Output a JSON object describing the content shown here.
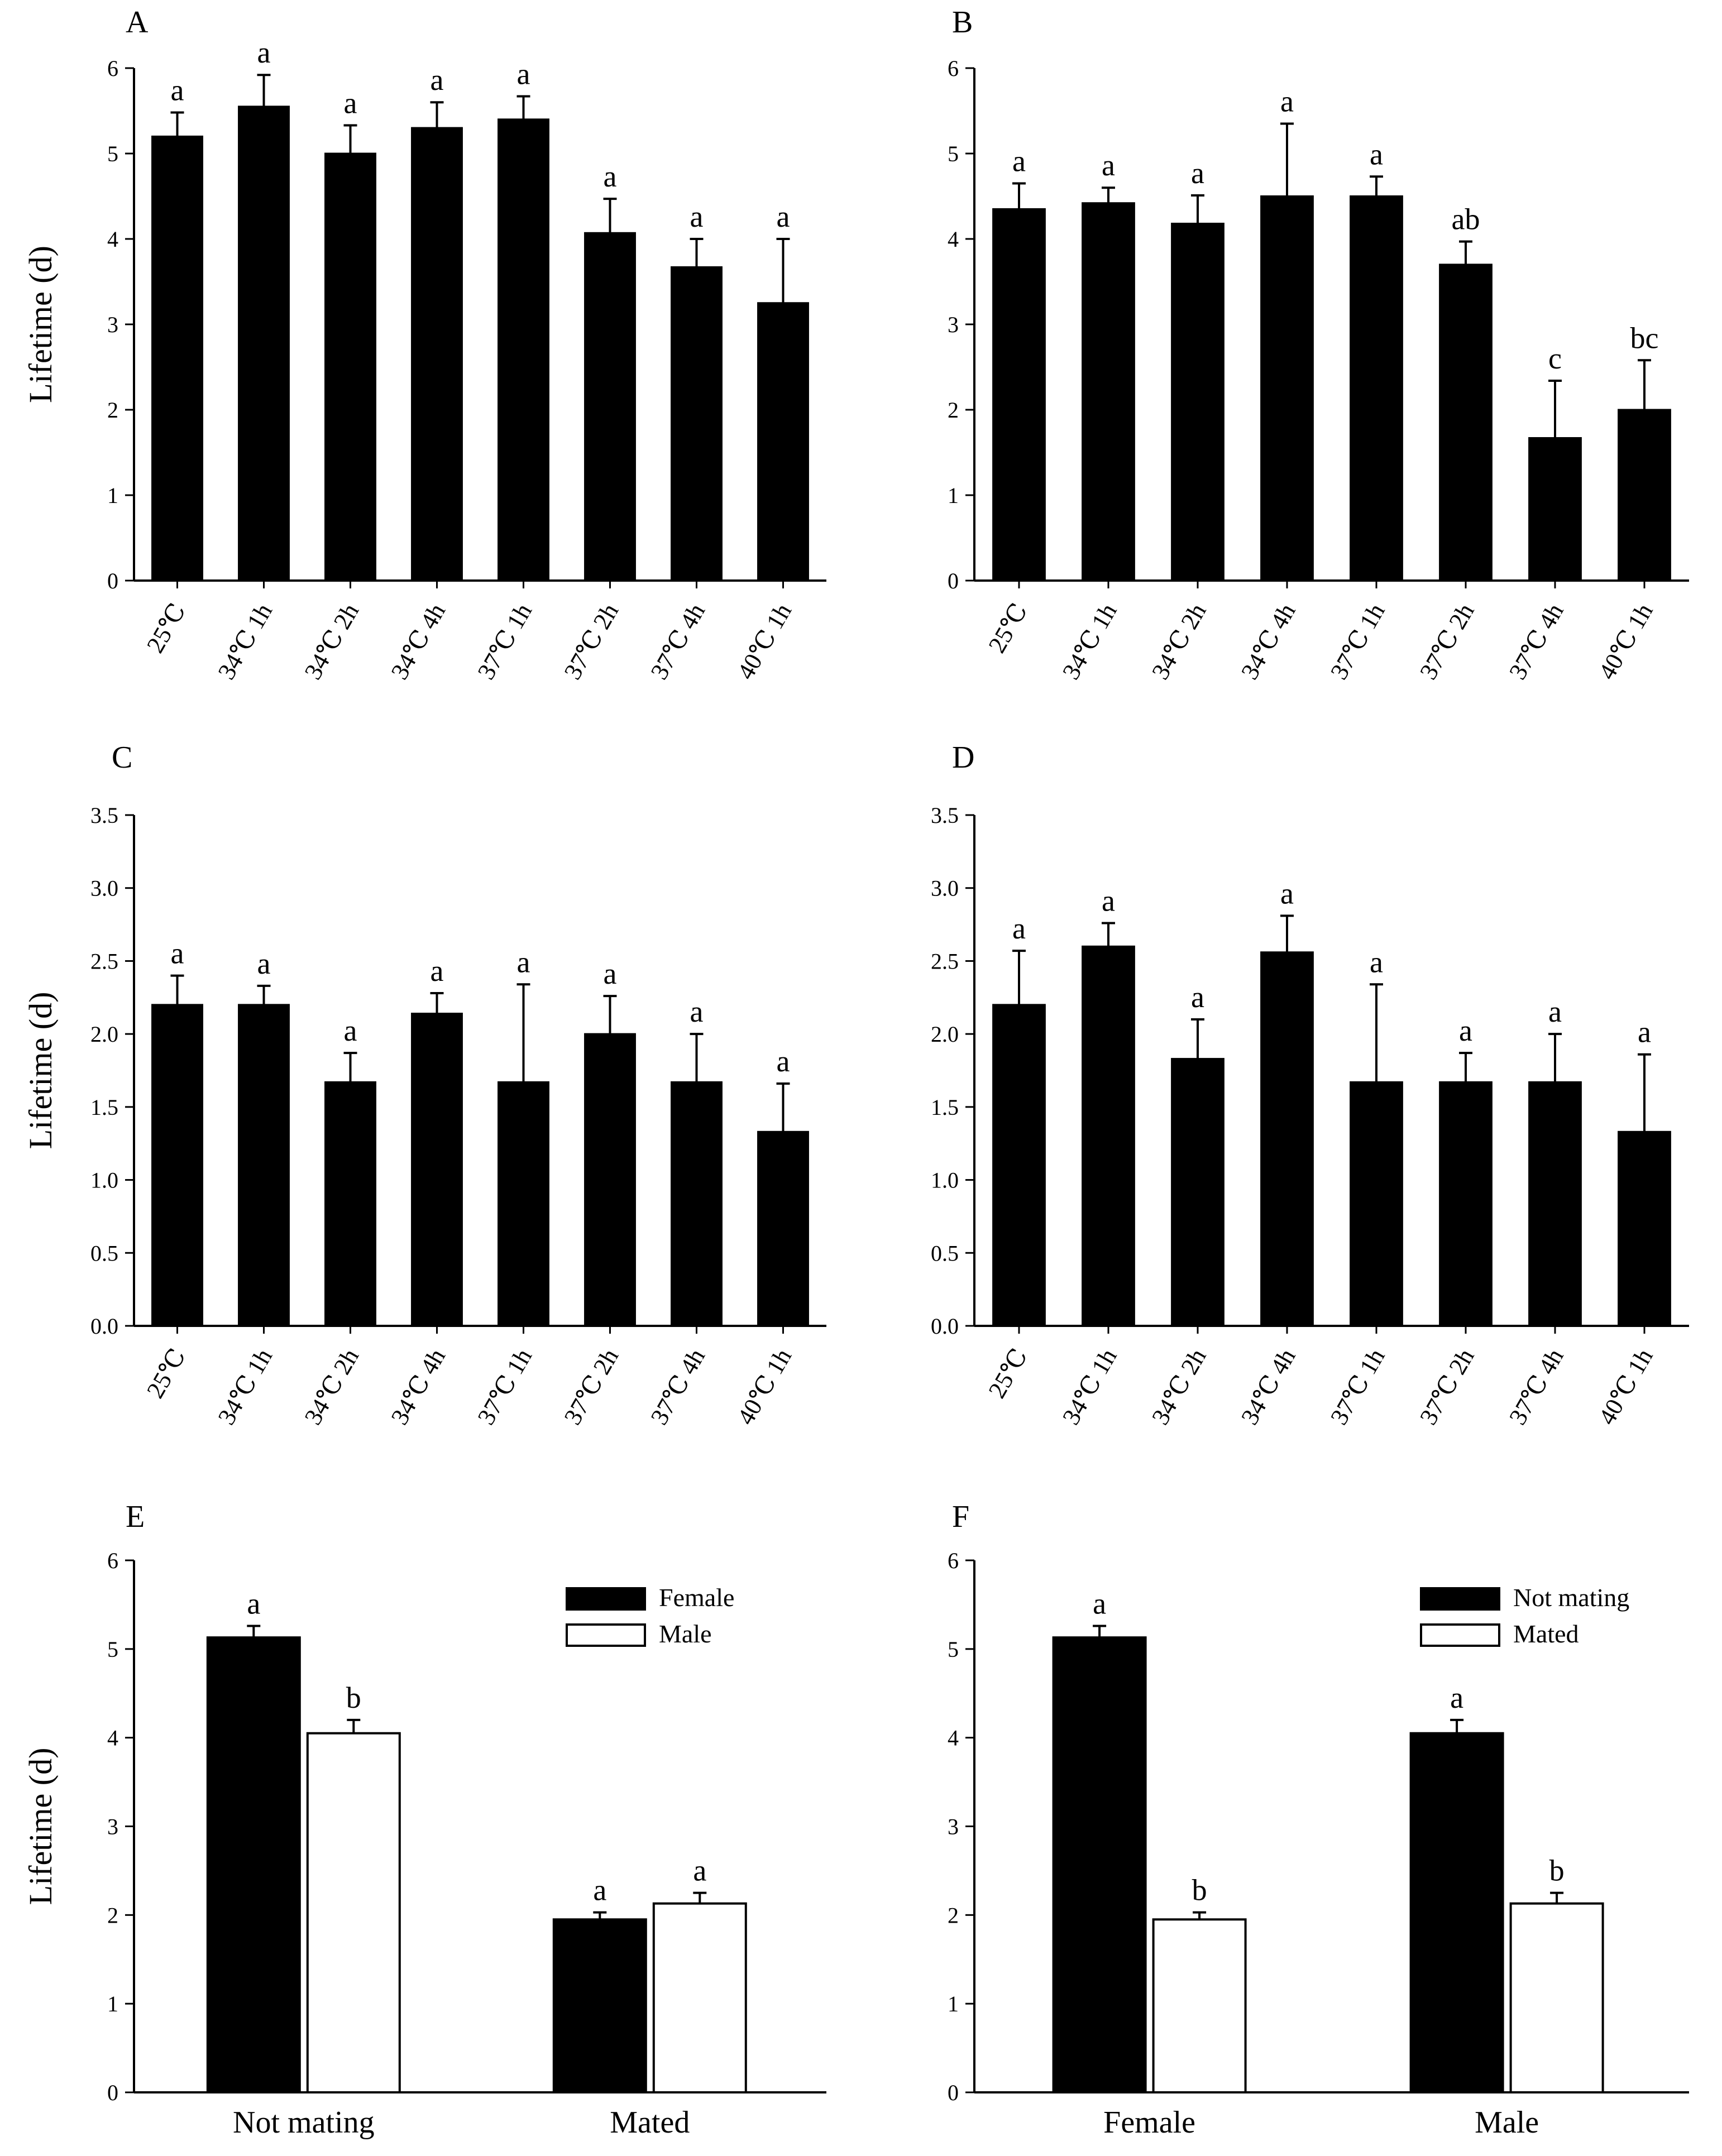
{
  "chart_data": [
    {
      "panel": "A",
      "type": "bar",
      "title": "",
      "xlabel": "",
      "ylabel": "Lifetime (d)",
      "ylim": [
        0,
        6
      ],
      "ytick_labels": [
        "0",
        "1",
        "2",
        "3",
        "4",
        "5",
        "6"
      ],
      "categories": [
        "25℃",
        "34℃ 1h",
        "34℃ 2h",
        "34℃ 4h",
        "37℃ 1h",
        "37℃ 2h",
        "37℃ 4h",
        "40℃ 1h"
      ],
      "series": [
        {
          "name": "",
          "fill": "#000000",
          "values": [
            5.2,
            5.55,
            5.0,
            5.3,
            5.4,
            4.07,
            3.67,
            3.25
          ],
          "errors": [
            0.28,
            0.37,
            0.33,
            0.3,
            0.27,
            0.4,
            0.33,
            0.75
          ],
          "letters": [
            "a",
            "a",
            "a",
            "a",
            "a",
            "a",
            "a",
            "a"
          ]
        }
      ]
    },
    {
      "panel": "B",
      "type": "bar",
      "title": "",
      "xlabel": "",
      "ylabel": "",
      "ylim": [
        0,
        6
      ],
      "ytick_labels": [
        "0",
        "1",
        "2",
        "3",
        "4",
        "5",
        "6"
      ],
      "categories": [
        "25℃",
        "34℃ 1h",
        "34℃ 2h",
        "34℃ 4h",
        "37℃ 1h",
        "37℃ 2h",
        "37℃ 4h",
        "40℃ 1h"
      ],
      "series": [
        {
          "name": "",
          "fill": "#000000",
          "values": [
            4.35,
            4.42,
            4.18,
            4.5,
            4.5,
            3.7,
            1.67,
            2.0
          ],
          "errors": [
            0.3,
            0.18,
            0.33,
            0.85,
            0.23,
            0.27,
            0.67,
            0.58
          ],
          "letters": [
            "a",
            "a",
            "a",
            "a",
            "a",
            "ab",
            "c",
            "bc"
          ]
        }
      ]
    },
    {
      "panel": "C",
      "type": "bar",
      "title": "",
      "xlabel": "",
      "ylabel": "Lifetime (d)",
      "ylim": [
        0,
        3.5
      ],
      "ytick_labels": [
        "0.0",
        "0.5",
        "1.0",
        "1.5",
        "2.0",
        "2.5",
        "3.0",
        "3.5"
      ],
      "categories": [
        "25℃",
        "34℃ 1h",
        "34℃ 2h",
        "34℃ 4h",
        "37℃ 1h",
        "37℃ 2h",
        "37℃ 4h",
        "40℃ 1h"
      ],
      "series": [
        {
          "name": "",
          "fill": "#000000",
          "values": [
            2.2,
            2.2,
            1.67,
            2.14,
            1.67,
            2.0,
            1.67,
            1.33
          ],
          "errors": [
            0.2,
            0.13,
            0.2,
            0.14,
            0.67,
            0.26,
            0.33,
            0.33
          ],
          "letters": [
            "a",
            "a",
            "a",
            "a",
            "a",
            "a",
            "a",
            "a"
          ]
        }
      ]
    },
    {
      "panel": "D",
      "type": "bar",
      "title": "",
      "xlabel": "",
      "ylabel": "",
      "ylim": [
        0,
        3.5
      ],
      "ytick_labels": [
        "0.0",
        "0.5",
        "1.0",
        "1.5",
        "2.0",
        "2.5",
        "3.0",
        "3.5"
      ],
      "categories": [
        "25℃",
        "34℃ 1h",
        "34℃ 2h",
        "34℃ 4h",
        "37℃ 1h",
        "37℃ 2h",
        "37℃ 4h",
        "40℃ 1h"
      ],
      "series": [
        {
          "name": "",
          "fill": "#000000",
          "values": [
            2.2,
            2.6,
            1.83,
            2.56,
            1.67,
            1.67,
            1.67,
            1.33
          ],
          "errors": [
            0.37,
            0.16,
            0.27,
            0.25,
            0.67,
            0.2,
            0.33,
            0.53
          ],
          "letters": [
            "a",
            "a",
            "a",
            "a",
            "a",
            "a",
            "a",
            "a"
          ]
        }
      ]
    },
    {
      "panel": "E",
      "type": "bar",
      "title": "",
      "xlabel": "",
      "ylabel": "Lifetime (d)",
      "ylim": [
        0,
        6
      ],
      "ytick_labels": [
        "0",
        "1",
        "2",
        "3",
        "4",
        "5",
        "6"
      ],
      "categories": [
        "Not mating",
        "Mated"
      ],
      "legend": "top-right",
      "series": [
        {
          "name": "Female",
          "fill": "#000000",
          "values": [
            5.13,
            1.95
          ],
          "errors": [
            0.13,
            0.08
          ],
          "letters": [
            "a",
            "a"
          ]
        },
        {
          "name": "Male",
          "fill": "#ffffff",
          "values": [
            4.05,
            2.13
          ],
          "errors": [
            0.15,
            0.12
          ],
          "letters": [
            "b",
            "a"
          ]
        }
      ]
    },
    {
      "panel": "F",
      "type": "bar",
      "title": "",
      "xlabel": "",
      "ylabel": "",
      "ylim": [
        0,
        6
      ],
      "ytick_labels": [
        "0",
        "1",
        "2",
        "3",
        "4",
        "5",
        "6"
      ],
      "categories": [
        "Female",
        "Male"
      ],
      "legend": "top-right",
      "series": [
        {
          "name": "Not mating",
          "fill": "#000000",
          "values": [
            5.13,
            4.05
          ],
          "errors": [
            0.13,
            0.15
          ],
          "letters": [
            "a",
            "a"
          ]
        },
        {
          "name": "Mated",
          "fill": "#ffffff",
          "values": [
            1.95,
            2.13
          ],
          "errors": [
            0.08,
            0.12
          ],
          "letters": [
            "b",
            "b"
          ]
        }
      ]
    }
  ]
}
